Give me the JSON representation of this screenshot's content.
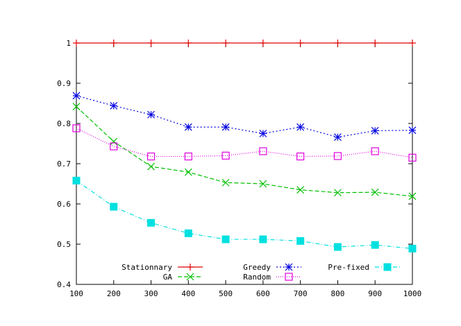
{
  "chart_data": {
    "type": "line",
    "title": "",
    "xlabel": "",
    "ylabel": "",
    "x": [
      100,
      200,
      300,
      400,
      500,
      600,
      700,
      800,
      900,
      1000
    ],
    "xlim": [
      100,
      1000
    ],
    "ylim": [
      0.4,
      1.0
    ],
    "x_ticks": [
      "100",
      "200",
      "300",
      "400",
      "500",
      "600",
      "700",
      "800",
      "900",
      "1000"
    ],
    "y_ticks": [
      {
        "value": 0.4,
        "label": "0.4"
      },
      {
        "value": 0.5,
        "label": "0.5"
      },
      {
        "value": 0.6,
        "label": "0.6"
      },
      {
        "value": 0.7,
        "label": "0.7"
      },
      {
        "value": 0.8,
        "label": "0.8"
      },
      {
        "value": 0.9,
        "label": "0.9"
      },
      {
        "value": 1.0,
        "label": "1"
      }
    ],
    "grid": false,
    "legend_position": "bottom",
    "series": [
      {
        "name": "Stationnary",
        "color": "#e00000",
        "marker": "plus",
        "dash": "solid",
        "values": [
          1.0,
          1.0,
          1.0,
          1.0,
          1.0,
          1.0,
          1.0,
          1.0,
          1.0,
          1.0
        ]
      },
      {
        "name": "GA",
        "color": "#00c000",
        "marker": "x",
        "dash": "dashed",
        "values": [
          0.842,
          0.755,
          0.693,
          0.679,
          0.653,
          0.65,
          0.635,
          0.628,
          0.629,
          0.619
        ]
      },
      {
        "name": "Greedy",
        "color": "#0000e0",
        "marker": "star",
        "dash": "dotted",
        "values": [
          0.869,
          0.844,
          0.822,
          0.791,
          0.791,
          0.775,
          0.791,
          0.766,
          0.782,
          0.783
        ]
      },
      {
        "name": "Random",
        "color": "#e000e0",
        "marker": "square-open",
        "dash": "finedot",
        "values": [
          0.788,
          0.743,
          0.718,
          0.718,
          0.72,
          0.731,
          0.718,
          0.719,
          0.731,
          0.715
        ]
      },
      {
        "name": "Pre-fixed",
        "color": "#00e0e0",
        "marker": "square-filled",
        "dash": "dashdot",
        "values": [
          0.658,
          0.593,
          0.553,
          0.527,
          0.512,
          0.512,
          0.508,
          0.493,
          0.498,
          0.489
        ]
      }
    ]
  }
}
